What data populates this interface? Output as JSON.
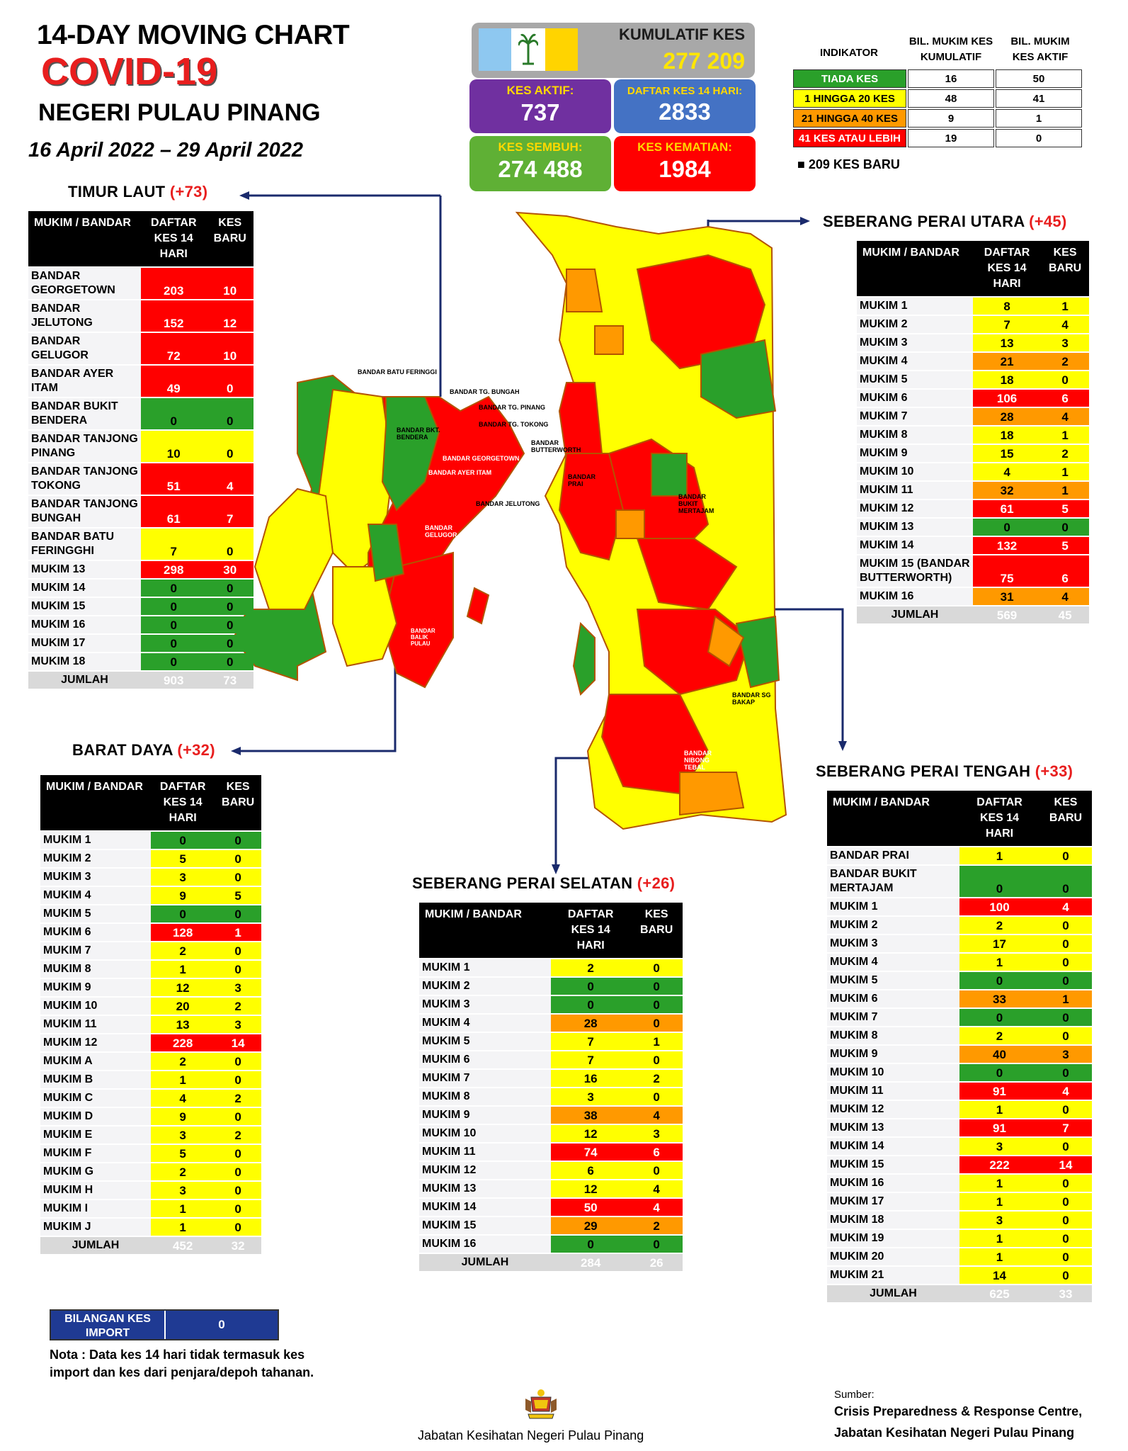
{
  "header": {
    "line1": "14-DAY MOVING CHART",
    "line2": "COVID-19",
    "line3": "NEGERI PULAU PINANG",
    "date_range": "16 April 2022 – 29 April 2022"
  },
  "summary": {
    "cumulative_label": "KUMULATIF KES",
    "cumulative_value": "277 209",
    "active_label": "KES AKTIF:",
    "active_value": "737",
    "fourteen_label": "DAFTAR KES 14 HARI:",
    "fourteen_value": "2833",
    "recovered_label": "KES SEMBUH:",
    "recovered_value": "274 488",
    "deaths_label": "KES KEMATIAN:",
    "deaths_value": "1984"
  },
  "indicator": {
    "h1": "INDIKATOR",
    "h2": "BIL. MUKIM KES KUMULATIF",
    "h3": "BIL. MUKIM KES AKTIF",
    "rows": [
      {
        "label": "TIADA KES",
        "cum": "16",
        "active": "50",
        "color": "#2aa02a"
      },
      {
        "label": "1 HINGGA 20 KES",
        "cum": "48",
        "active": "41",
        "color": "#ffff00"
      },
      {
        "label": "21 HINGGA 40 KES",
        "cum": "9",
        "active": "1",
        "color": "#ff9900"
      },
      {
        "label": "41 KES ATAU LEBIH",
        "cum": "19",
        "active": "0",
        "color": "#ff0000"
      }
    ],
    "new_cases_note": "■  209 KES BARU"
  },
  "colors": {
    "green": "#2aa02a",
    "yellow": "#ffff00",
    "orange": "#ff9900",
    "red": "#ff0000",
    "navy": "#1a2a6c"
  },
  "col_headers": {
    "name": "MUKIM / BANDAR",
    "daftar": "DAFTAR KES 14 HARI",
    "baru": "KES BARU"
  },
  "map_labels": {
    "bukit_bendera": "BANDAR BKT. BENDERA",
    "georgetown": "BANDAR GEORGETOWN",
    "ayer_itam": "BANDAR AYER ITAM",
    "jelutong": "BANDAR JELUTONG",
    "batu_feringgi": "BANDAR BATU FERINGGI",
    "tg_bungah": "BANDAR TG. BUNGAH",
    "tg_pinang": "BANDAR TG. PINANG",
    "tg_tokong": "BANDAR TG. TOKONG",
    "butterworth": "BANDAR BUTTERWORTH",
    "prai": "BANDAR PRAI",
    "bukit_mertajam": "BANDAR BUKIT MERTAJAM",
    "sg_bakap": "BANDAR SG BAKAP",
    "nibong_tebal": "BANDAR NIBONG TEBAL",
    "gelugor": "BANDAR GELUGOR",
    "balik_pulau": "BANDAR BALIK PULAU"
  },
  "chart_data": [
    {
      "type": "table",
      "title": "TIMUR LAUT",
      "increase": "(+73)",
      "columns": [
        "MUKIM / BANDAR",
        "DAFTAR KES 14 HARI",
        "KES BARU"
      ],
      "rows": [
        [
          "BANDAR GEORGETOWN",
          203,
          10
        ],
        [
          "BANDAR JELUTONG",
          152,
          12
        ],
        [
          "BANDAR GELUGOR",
          72,
          10
        ],
        [
          "BANDAR AYER ITAM",
          49,
          0
        ],
        [
          "BANDAR BUKIT BENDERA",
          0,
          0
        ],
        [
          "BANDAR TANJONG PINANG",
          10,
          0
        ],
        [
          "BANDAR TANJONG TOKONG",
          51,
          4
        ],
        [
          "BANDAR TANJONG BUNGAH",
          61,
          7
        ],
        [
          "BANDAR BATU FERINGGHI",
          7,
          0
        ],
        [
          "MUKIM 13",
          298,
          30
        ],
        [
          "MUKIM 14",
          0,
          0
        ],
        [
          "MUKIM 15",
          0,
          0
        ],
        [
          "MUKIM 16",
          0,
          0
        ],
        [
          "MUKIM 17",
          0,
          0
        ],
        [
          "MUKIM 18",
          0,
          0
        ]
      ],
      "total": [
        "JUMLAH",
        903,
        73
      ]
    },
    {
      "type": "table",
      "title": "BARAT DAYA",
      "increase": "(+32)",
      "columns": [
        "MUKIM / BANDAR",
        "DAFTAR KES 14 HARI",
        "KES BARU"
      ],
      "rows": [
        [
          "MUKIM 1",
          0,
          0
        ],
        [
          "MUKIM 2",
          5,
          0
        ],
        [
          "MUKIM 3",
          3,
          0
        ],
        [
          "MUKIM 4",
          9,
          5
        ],
        [
          "MUKIM 5",
          0,
          0
        ],
        [
          "MUKIM 6",
          128,
          1
        ],
        [
          "MUKIM 7",
          2,
          0
        ],
        [
          "MUKIM 8",
          1,
          0
        ],
        [
          "MUKIM 9",
          12,
          3
        ],
        [
          "MUKIM 10",
          20,
          2
        ],
        [
          "MUKIM 11",
          13,
          3
        ],
        [
          "MUKIM 12",
          228,
          14
        ],
        [
          "MUKIM A",
          2,
          0
        ],
        [
          "MUKIM B",
          1,
          0
        ],
        [
          "MUKIM C",
          4,
          2
        ],
        [
          "MUKIM D",
          9,
          0
        ],
        [
          "MUKIM E",
          3,
          2
        ],
        [
          "MUKIM F",
          5,
          0
        ],
        [
          "MUKIM G",
          2,
          0
        ],
        [
          "MUKIM H",
          3,
          0
        ],
        [
          "MUKIM I",
          1,
          0
        ],
        [
          "MUKIM J",
          1,
          0
        ]
      ],
      "total": [
        "JUMLAH",
        452,
        32
      ]
    },
    {
      "type": "table",
      "title": "SEBERANG PERAI UTARA",
      "increase": "(+45)",
      "columns": [
        "MUKIM / BANDAR",
        "DAFTAR KES 14 HARI",
        "KES BARU"
      ],
      "rows": [
        [
          "MUKIM 1",
          8,
          1
        ],
        [
          "MUKIM 2",
          7,
          4
        ],
        [
          "MUKIM 3",
          13,
          3
        ],
        [
          "MUKIM 4",
          21,
          2
        ],
        [
          "MUKIM 5",
          18,
          0
        ],
        [
          "MUKIM 6",
          106,
          6
        ],
        [
          "MUKIM 7",
          28,
          4
        ],
        [
          "MUKIM 8",
          18,
          1
        ],
        [
          "MUKIM 9",
          15,
          2
        ],
        [
          "MUKIM 10",
          4,
          1
        ],
        [
          "MUKIM 11",
          32,
          1
        ],
        [
          "MUKIM 12",
          61,
          5
        ],
        [
          "MUKIM 13",
          0,
          0
        ],
        [
          "MUKIM 14",
          132,
          5
        ],
        [
          "MUKIM 15 (BANDAR BUTTERWORTH)",
          75,
          6
        ],
        [
          "MUKIM 16",
          31,
          4
        ]
      ],
      "total": [
        "JUMLAH",
        569,
        45
      ]
    },
    {
      "type": "table",
      "title": "SEBERANG PERAI TENGAH",
      "increase": "(+33)",
      "columns": [
        "MUKIM / BANDAR",
        "DAFTAR KES 14 HARI",
        "KES BARU"
      ],
      "rows": [
        [
          "BANDAR PRAI",
          1,
          0
        ],
        [
          "BANDAR BUKIT MERTAJAM",
          0,
          0
        ],
        [
          "MUKIM 1",
          100,
          4
        ],
        [
          "MUKIM 2",
          2,
          0
        ],
        [
          "MUKIM 3",
          17,
          0
        ],
        [
          "MUKIM 4",
          1,
          0
        ],
        [
          "MUKIM 5",
          0,
          0
        ],
        [
          "MUKIM 6",
          33,
          1
        ],
        [
          "MUKIM 7",
          0,
          0
        ],
        [
          "MUKIM 8",
          2,
          0
        ],
        [
          "MUKIM 9",
          40,
          3
        ],
        [
          "MUKIM 10",
          0,
          0
        ],
        [
          "MUKIM 11",
          91,
          4
        ],
        [
          "MUKIM 12",
          1,
          0
        ],
        [
          "MUKIM 13",
          91,
          7
        ],
        [
          "MUKIM 14",
          3,
          0
        ],
        [
          "MUKIM 15",
          222,
          14
        ],
        [
          "MUKIM 16",
          1,
          0
        ],
        [
          "MUKIM 17",
          1,
          0
        ],
        [
          "MUKIM 18",
          3,
          0
        ],
        [
          "MUKIM 19",
          1,
          0
        ],
        [
          "MUKIM 20",
          1,
          0
        ],
        [
          "MUKIM 21",
          14,
          0
        ]
      ],
      "total": [
        "JUMLAH",
        625,
        33
      ]
    },
    {
      "type": "table",
      "title": "SEBERANG PERAI SELATAN",
      "increase": "(+26)",
      "columns": [
        "MUKIM / BANDAR",
        "DAFTAR KES 14 HARI",
        "KES BARU"
      ],
      "rows": [
        [
          "MUKIM 1",
          2,
          0
        ],
        [
          "MUKIM 2",
          0,
          0
        ],
        [
          "MUKIM 3",
          0,
          0
        ],
        [
          "MUKIM 4",
          28,
          0
        ],
        [
          "MUKIM 5",
          7,
          1
        ],
        [
          "MUKIM 6",
          7,
          0
        ],
        [
          "MUKIM 7",
          16,
          2
        ],
        [
          "MUKIM 8",
          3,
          0
        ],
        [
          "MUKIM 9",
          38,
          4
        ],
        [
          "MUKIM 10",
          12,
          3
        ],
        [
          "MUKIM 11",
          74,
          6
        ],
        [
          "MUKIM 12",
          6,
          0
        ],
        [
          "MUKIM 13",
          12,
          4
        ],
        [
          "MUKIM 14",
          50,
          4
        ],
        [
          "MUKIM 15",
          29,
          2
        ],
        [
          "MUKIM 16",
          0,
          0
        ]
      ],
      "total": [
        "JUMLAH",
        284,
        26
      ]
    }
  ],
  "import_box": {
    "label": "BILANGAN KES IMPORT",
    "value": "0"
  },
  "note": "Nota : Data kes 14 hari tidak termasuk kes import dan kes dari penjara/depoh tahanan.",
  "footer": {
    "center": "Jabatan Kesihatan Negeri Pulau Pinang",
    "source_label": "Sumber:",
    "source_line1": "Crisis Preparedness & Response Centre,",
    "source_line2": "Jabatan Kesihatan Negeri Pulau Pinang"
  }
}
